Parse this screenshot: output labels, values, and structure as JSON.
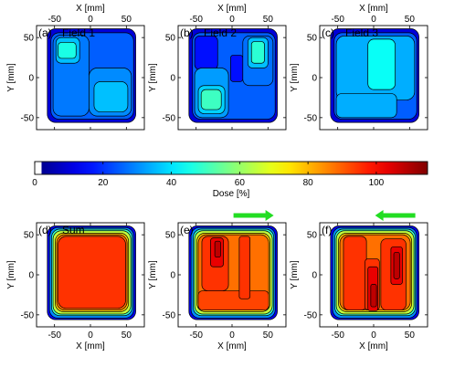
{
  "chart_data": [
    {
      "type": "heatmap",
      "panel_label": "(a)",
      "title": "Field 1",
      "xlabel": "X [mm]",
      "ylabel": "Y [mm]",
      "xaxis_position": "top",
      "xlim": [
        -75,
        75
      ],
      "ylim": [
        -65,
        65
      ],
      "xticks": [
        -50,
        0,
        50
      ],
      "yticks": [
        -50,
        0,
        50
      ],
      "regions": [
        {
          "x": [
            -60,
            63
          ],
          "y": [
            -56,
            61
          ],
          "dose": 10
        },
        {
          "x": [
            -55,
            60
          ],
          "y": [
            -52,
            56
          ],
          "dose": 25
        },
        {
          "x": [
            -52,
            -2
          ],
          "y": [
            -48,
            53
          ],
          "dose": 28
        },
        {
          "x": [
            -2,
            57
          ],
          "y": [
            -48,
            12
          ],
          "dose": 30
        },
        {
          "x": [
            -48,
            -15
          ],
          "y": [
            18,
            50
          ],
          "dose": 36
        },
        {
          "x": [
            -45,
            -20
          ],
          "y": [
            24,
            44
          ],
          "dose": 46
        },
        {
          "x": [
            5,
            52
          ],
          "y": [
            -43,
            -5
          ],
          "dose": 36
        }
      ]
    },
    {
      "type": "heatmap",
      "panel_label": "(b)",
      "title": "Field 2",
      "xlabel": "X [mm]",
      "ylabel": "Y [mm]",
      "xaxis_position": "top",
      "xlim": [
        -75,
        75
      ],
      "ylim": [
        -65,
        65
      ],
      "xticks": [
        -50,
        0,
        50
      ],
      "yticks": [
        -50,
        0,
        50
      ],
      "regions": [
        {
          "x": [
            -60,
            63
          ],
          "y": [
            -56,
            61
          ],
          "dose": 10
        },
        {
          "x": [
            -55,
            60
          ],
          "y": [
            -52,
            56
          ],
          "dose": 25
        },
        {
          "x": [
            -52,
            -20
          ],
          "y": [
            10,
            52
          ],
          "dose": 16
        },
        {
          "x": [
            -2,
            15
          ],
          "y": [
            -5,
            28
          ],
          "dose": 16
        },
        {
          "x": [
            -52,
            -5
          ],
          "y": [
            -50,
            12
          ],
          "dose": 32
        },
        {
          "x": [
            15,
            57
          ],
          "y": [
            -10,
            52
          ],
          "dose": 27
        },
        {
          "x": [
            22,
            50
          ],
          "y": [
            12,
            50
          ],
          "dose": 36
        },
        {
          "x": [
            -47,
            -10
          ],
          "y": [
            -45,
            -10
          ],
          "dose": 38
        },
        {
          "x": [
            27,
            45
          ],
          "y": [
            18,
            45
          ],
          "dose": 48
        },
        {
          "x": [
            -43,
            -15
          ],
          "y": [
            -40,
            -15
          ],
          "dose": 50
        }
      ]
    },
    {
      "type": "heatmap",
      "panel_label": "(c)",
      "title": "Field 3",
      "xlabel": "X [mm]",
      "ylabel": "Y [mm]",
      "xaxis_position": "top",
      "xlim": [
        -75,
        75
      ],
      "ylim": [
        -65,
        65
      ],
      "xticks": [
        -50,
        0,
        50
      ],
      "yticks": [
        -50,
        0,
        50
      ],
      "regions": [
        {
          "x": [
            -60,
            63
          ],
          "y": [
            -56,
            61
          ],
          "dose": 10
        },
        {
          "x": [
            -55,
            60
          ],
          "y": [
            -52,
            56
          ],
          "dose": 25
        },
        {
          "x": [
            -52,
            57
          ],
          "y": [
            -28,
            52
          ],
          "dose": 34
        },
        {
          "x": [
            -52,
            32
          ],
          "y": [
            -50,
            -20
          ],
          "dose": 34
        },
        {
          "x": [
            -8,
            30
          ],
          "y": [
            -15,
            48
          ],
          "dose": 44
        }
      ]
    },
    {
      "type": "colorbar",
      "xlabel": "Dose [%]",
      "range": [
        0,
        115
      ],
      "ticks": [
        0,
        20,
        40,
        60,
        80,
        100
      ],
      "colormap": "jet"
    },
    {
      "type": "heatmap",
      "panel_label": "(d)",
      "title": "Sum",
      "xlabel": "X [mm]",
      "ylabel": "Y [mm]",
      "xaxis_position": "bottom",
      "xlim": [
        -75,
        75
      ],
      "ylim": [
        -65,
        65
      ],
      "xticks": [
        -50,
        0,
        50
      ],
      "yticks": [
        -50,
        0,
        50
      ],
      "regions": [
        {
          "x": [
            -60,
            63
          ],
          "y": [
            -56,
            61
          ],
          "dose": 12
        },
        {
          "x": [
            -57,
            60
          ],
          "y": [
            -54,
            59
          ],
          "dose": 30
        },
        {
          "x": [
            -54,
            58
          ],
          "y": [
            -51,
            57
          ],
          "dose": 50
        },
        {
          "x": [
            -52,
            56
          ],
          "y": [
            -49,
            55
          ],
          "dose": 65
        },
        {
          "x": [
            -49,
            53
          ],
          "y": [
            -46,
            52
          ],
          "dose": 78
        },
        {
          "x": [
            -47,
            51
          ],
          "y": [
            -44,
            50
          ],
          "dose": 88
        },
        {
          "x": [
            -45,
            49
          ],
          "y": [
            -42,
            48
          ],
          "dose": 95
        }
      ]
    },
    {
      "type": "heatmap",
      "panel_label": "(e)",
      "xlabel": "X [mm]",
      "ylabel": "Y [mm]",
      "xaxis_position": "bottom",
      "xlim": [
        -75,
        75
      ],
      "ylim": [
        -65,
        65
      ],
      "xticks": [
        -50,
        0,
        50
      ],
      "yticks": [
        -50,
        0,
        50
      ],
      "arrow": "right",
      "regions": [
        {
          "x": [
            -60,
            63
          ],
          "y": [
            -56,
            61
          ],
          "dose": 12
        },
        {
          "x": [
            -57,
            60
          ],
          "y": [
            -54,
            59
          ],
          "dose": 30
        },
        {
          "x": [
            -54,
            58
          ],
          "y": [
            -51,
            57
          ],
          "dose": 50
        },
        {
          "x": [
            -52,
            56
          ],
          "y": [
            -49,
            55
          ],
          "dose": 65
        },
        {
          "x": [
            -49,
            53
          ],
          "y": [
            -46,
            52
          ],
          "dose": 78
        },
        {
          "x": [
            -47,
            51
          ],
          "y": [
            -44,
            50
          ],
          "dose": 88
        },
        {
          "x": [
            -47,
            51
          ],
          "y": [
            -44,
            -20
          ],
          "dose": 93
        },
        {
          "x": [
            -42,
            -5
          ],
          "y": [
            -20,
            48
          ],
          "dose": 95
        },
        {
          "x": [
            10,
            25
          ],
          "y": [
            -30,
            48
          ],
          "dose": 95
        },
        {
          "x": [
            -30,
            -12
          ],
          "y": [
            10,
            46
          ],
          "dose": 103
        },
        {
          "x": [
            -24,
            -16
          ],
          "y": [
            22,
            42
          ],
          "dose": 108
        }
      ]
    },
    {
      "type": "heatmap",
      "panel_label": "(f)",
      "xlabel": "X [mm]",
      "ylabel": "Y [mm]",
      "xaxis_position": "bottom",
      "xlim": [
        -75,
        75
      ],
      "ylim": [
        -65,
        65
      ],
      "xticks": [
        -50,
        0,
        50
      ],
      "yticks": [
        -50,
        0,
        50
      ],
      "arrow": "left",
      "regions": [
        {
          "x": [
            -60,
            63
          ],
          "y": [
            -56,
            61
          ],
          "dose": 12
        },
        {
          "x": [
            -57,
            60
          ],
          "y": [
            -54,
            59
          ],
          "dose": 30
        },
        {
          "x": [
            -54,
            58
          ],
          "y": [
            -51,
            57
          ],
          "dose": 50
        },
        {
          "x": [
            -52,
            56
          ],
          "y": [
            -49,
            55
          ],
          "dose": 65
        },
        {
          "x": [
            -49,
            53
          ],
          "y": [
            -46,
            52
          ],
          "dose": 78
        },
        {
          "x": [
            -47,
            51
          ],
          "y": [
            -44,
            50
          ],
          "dose": 88
        },
        {
          "x": [
            -42,
            -10
          ],
          "y": [
            -44,
            48
          ],
          "dose": 95
        },
        {
          "x": [
            10,
            45
          ],
          "y": [
            -44,
            45
          ],
          "dose": 95
        },
        {
          "x": [
            -12,
            8
          ],
          "y": [
            -44,
            20
          ],
          "dose": 95
        },
        {
          "x": [
            -8,
            6
          ],
          "y": [
            -45,
            10
          ],
          "dose": 103
        },
        {
          "x": [
            24,
            40
          ],
          "y": [
            -12,
            35
          ],
          "dose": 103
        },
        {
          "x": [
            -4,
            4
          ],
          "y": [
            -40,
            -12
          ],
          "dose": 108
        },
        {
          "x": [
            28,
            36
          ],
          "y": [
            -5,
            28
          ],
          "dose": 108
        }
      ]
    }
  ]
}
